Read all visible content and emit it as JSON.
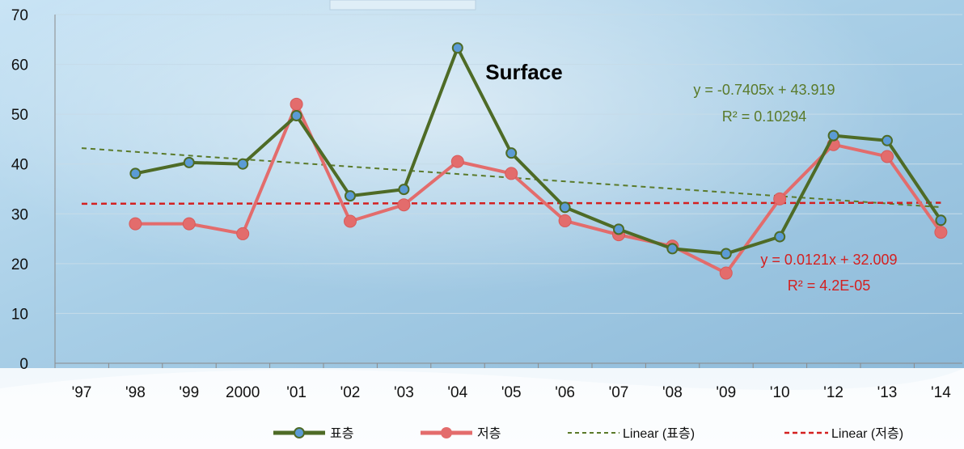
{
  "chart_data": {
    "type": "line",
    "title": "Surface",
    "categories": [
      "'97",
      "'98",
      "'99",
      "2000",
      "'01",
      "'02",
      "'03",
      "'04",
      "'05",
      "'06",
      "'07",
      "'08",
      "'09",
      "'10",
      "'12",
      "'13",
      "'14"
    ],
    "ylim": [
      0,
      70
    ],
    "yticks": [
      0,
      10,
      20,
      30,
      40,
      50,
      60,
      70
    ],
    "grid": true,
    "legend_position": "bottom",
    "series": [
      {
        "name": "표층",
        "color": "#4e6b26",
        "marker_color": "#5b9bd5",
        "values": [
          null,
          38.1,
          40.3,
          40.0,
          49.7,
          33.6,
          34.9,
          63.3,
          42.2,
          31.3,
          26.9,
          23.0,
          22.0,
          25.4,
          45.7,
          44.7,
          28.7
        ]
      },
      {
        "name": "저층",
        "color": "#e36c6c",
        "marker_color": "#e36c6c",
        "values": [
          null,
          28.0,
          28.0,
          26.0,
          52.0,
          28.5,
          31.8,
          40.5,
          38.1,
          28.6,
          25.8,
          23.5,
          18.1,
          33.0,
          43.9,
          41.5,
          26.3
        ]
      }
    ],
    "trendlines": [
      {
        "name": "Linear (표층)",
        "color": "#5a7a2a",
        "equation": "y = -0.7405x + 43.919",
        "r2": "R² = 0.10294",
        "slope": -0.7405,
        "intercept": 43.919
      },
      {
        "name": "Linear (저층)",
        "color": "#d42020",
        "equation": "y = 0.0121x + 32.009",
        "r2": "R² = 4.2E-05",
        "slope": 0.0121,
        "intercept": 32.009
      }
    ]
  }
}
